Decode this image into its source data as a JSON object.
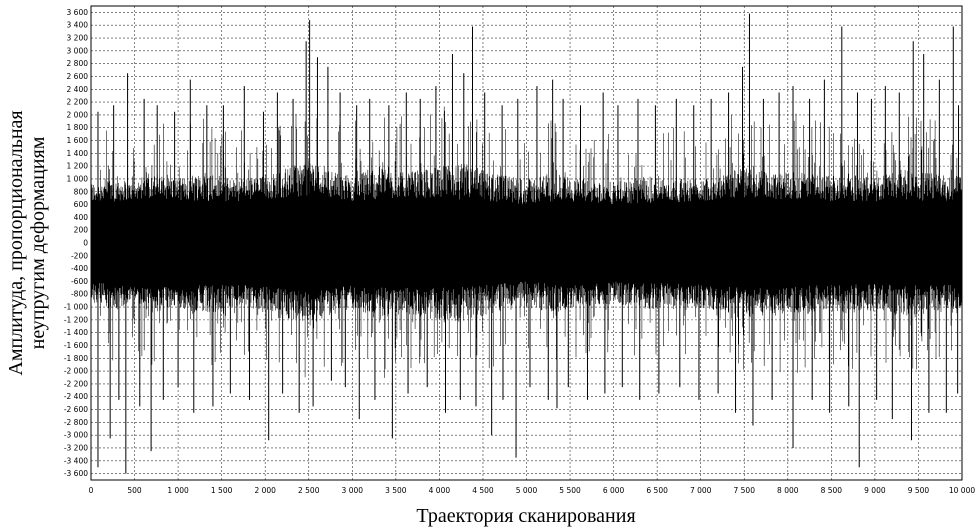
{
  "chart_data": {
    "type": "line",
    "xlabel": "Траектория сканирования",
    "ylabel_lines": [
      "Амплитуда, пропорциональная",
      "неупругим деформациям"
    ],
    "xlim": [
      0,
      10000
    ],
    "ylim": [
      -3700,
      3700
    ],
    "x_ticks": [
      0,
      500,
      1000,
      1500,
      2000,
      2500,
      3000,
      3500,
      4000,
      4500,
      5000,
      5500,
      6000,
      6500,
      7000,
      7500,
      8000,
      8500,
      9000,
      9500,
      10000
    ],
    "x_tick_labels": [
      "0",
      "500",
      "1 000",
      "1 500",
      "2 000",
      "2 500",
      "3 000",
      "3 500",
      "4 000",
      "4 500",
      "5 000",
      "5 500",
      "6 000",
      "6 500",
      "7 000",
      "7 500",
      "8 000",
      "8 500",
      "9 000",
      "9 500",
      "10 000"
    ],
    "y_ticks": [
      3600,
      3400,
      3200,
      3000,
      2800,
      2600,
      2400,
      2200,
      2000,
      1800,
      1600,
      1400,
      1200,
      1000,
      800,
      600,
      400,
      200,
      0,
      -200,
      -400,
      -600,
      -800,
      -1000,
      -1200,
      -1400,
      -1600,
      -1800,
      -2000,
      -2200,
      -2400,
      -2600,
      -2800,
      -3000,
      -3200,
      -3400,
      -3600
    ],
    "y_tick_labels": [
      "3 600",
      "3 400",
      "3 200",
      "3 000",
      "2 800",
      "2 600",
      "2 400",
      "2 200",
      "2 000",
      "1 800",
      "1 600",
      "1 400",
      "1 200",
      "1 000",
      "800",
      "600",
      "400",
      "200",
      "0",
      "-200",
      "-400",
      "-600",
      "-800",
      "-1 000",
      "-1 200",
      "-1 400",
      "-1 600",
      "-1 800",
      "-2 000",
      "-2 200",
      "-2 400",
      "-2 600",
      "-2 800",
      "-3 000",
      "-3 200",
      "-3 400",
      "-3 600"
    ],
    "grid": true,
    "series": [
      {
        "color": "#000000",
        "spikes_up": [
          [
            80,
            2050
          ],
          [
            260,
            2150
          ],
          [
            420,
            2650
          ],
          [
            610,
            2250
          ],
          [
            760,
            2150
          ],
          [
            960,
            2050
          ],
          [
            1140,
            2550
          ],
          [
            1330,
            2150
          ],
          [
            1520,
            2150
          ],
          [
            1760,
            2450
          ],
          [
            1980,
            2050
          ],
          [
            2140,
            2350
          ],
          [
            2320,
            2250
          ],
          [
            2470,
            3150
          ],
          [
            2510,
            3480
          ],
          [
            2600,
            2900
          ],
          [
            2720,
            2750
          ],
          [
            2860,
            2350
          ],
          [
            3050,
            2150
          ],
          [
            3200,
            2250
          ],
          [
            3420,
            2150
          ],
          [
            3620,
            2350
          ],
          [
            3780,
            2250
          ],
          [
            3960,
            2450
          ],
          [
            4150,
            2950
          ],
          [
            4280,
            2650
          ],
          [
            4380,
            3380
          ],
          [
            4520,
            2350
          ],
          [
            4720,
            2150
          ],
          [
            4900,
            2250
          ],
          [
            5120,
            2450
          ],
          [
            5300,
            2550
          ],
          [
            5420,
            2250
          ],
          [
            5620,
            2150
          ],
          [
            5880,
            2350
          ],
          [
            6050,
            2150
          ],
          [
            6280,
            2250
          ],
          [
            6480,
            2150
          ],
          [
            6720,
            2250
          ],
          [
            6920,
            2150
          ],
          [
            7120,
            2250
          ],
          [
            7320,
            2350
          ],
          [
            7480,
            2750
          ],
          [
            7560,
            3580
          ],
          [
            7720,
            2250
          ],
          [
            7900,
            2350
          ],
          [
            8060,
            2450
          ],
          [
            8250,
            2250
          ],
          [
            8420,
            2550
          ],
          [
            8620,
            3380
          ],
          [
            8800,
            2350
          ],
          [
            8960,
            2250
          ],
          [
            9120,
            2450
          ],
          [
            9280,
            2350
          ],
          [
            9440,
            3150
          ],
          [
            9560,
            2950
          ],
          [
            9740,
            2550
          ],
          [
            9900,
            3380
          ],
          [
            9960,
            2150
          ]
        ],
        "spikes_down": [
          [
            80,
            -3500
          ],
          [
            220,
            -3050
          ],
          [
            320,
            -2450
          ],
          [
            400,
            -3600
          ],
          [
            560,
            -2550
          ],
          [
            690,
            -3250
          ],
          [
            830,
            -2450
          ],
          [
            1000,
            -2250
          ],
          [
            1180,
            -2650
          ],
          [
            1400,
            -2550
          ],
          [
            1600,
            -2350
          ],
          [
            1820,
            -2450
          ],
          [
            2040,
            -3080
          ],
          [
            2200,
            -2350
          ],
          [
            2390,
            -2650
          ],
          [
            2550,
            -2550
          ],
          [
            2760,
            -2150
          ],
          [
            2920,
            -2250
          ],
          [
            3080,
            -2750
          ],
          [
            3260,
            -2450
          ],
          [
            3460,
            -3050
          ],
          [
            3640,
            -2350
          ],
          [
            3860,
            -2250
          ],
          [
            4070,
            -2650
          ],
          [
            4240,
            -2450
          ],
          [
            4420,
            -2550
          ],
          [
            4600,
            -3000
          ],
          [
            4730,
            -2450
          ],
          [
            4880,
            -3350
          ],
          [
            5040,
            -2250
          ],
          [
            5250,
            -2450
          ],
          [
            5350,
            -2580
          ],
          [
            5480,
            -2250
          ],
          [
            5700,
            -2450
          ],
          [
            5900,
            -2350
          ],
          [
            6100,
            -2250
          ],
          [
            6300,
            -2450
          ],
          [
            6520,
            -2350
          ],
          [
            6760,
            -2250
          ],
          [
            6980,
            -2450
          ],
          [
            7200,
            -2350
          ],
          [
            7400,
            -2650
          ],
          [
            7600,
            -2850
          ],
          [
            7820,
            -2450
          ],
          [
            8060,
            -3200
          ],
          [
            8280,
            -2450
          ],
          [
            8480,
            -2650
          ],
          [
            8700,
            -2550
          ],
          [
            8820,
            -3500
          ],
          [
            9020,
            -2450
          ],
          [
            9200,
            -2750
          ],
          [
            9420,
            -3080
          ],
          [
            9620,
            -2650
          ],
          [
            9820,
            -2650
          ],
          [
            9950,
            -2350
          ]
        ],
        "envelope_points": [
          [
            0,
            950
          ],
          [
            300,
            1050
          ],
          [
            500,
            900
          ],
          [
            700,
            1100
          ],
          [
            1000,
            1000
          ],
          [
            1300,
            1150
          ],
          [
            1600,
            1000
          ],
          [
            2000,
            1050
          ],
          [
            2300,
            1200
          ],
          [
            2500,
            1300
          ],
          [
            2700,
            1150
          ],
          [
            3000,
            1050
          ],
          [
            3300,
            1200
          ],
          [
            3600,
            1100
          ],
          [
            4000,
            1200
          ],
          [
            4300,
            1250
          ],
          [
            4600,
            1100
          ],
          [
            5000,
            1000
          ],
          [
            5300,
            1100
          ],
          [
            5600,
            1000
          ],
          [
            6000,
            950
          ],
          [
            6400,
            1050
          ],
          [
            6800,
            1000
          ],
          [
            7200,
            1050
          ],
          [
            7500,
            1200
          ],
          [
            7800,
            1100
          ],
          [
            8100,
            1150
          ],
          [
            8400,
            1050
          ],
          [
            8700,
            1100
          ],
          [
            9000,
            1050
          ],
          [
            9300,
            1150
          ],
          [
            9600,
            1100
          ],
          [
            10000,
            1050
          ]
        ],
        "core_points": [
          [
            0,
            600
          ],
          [
            300,
            650
          ],
          [
            700,
            700
          ],
          [
            1200,
            650
          ],
          [
            1700,
            650
          ],
          [
            2200,
            700
          ],
          [
            2600,
            750
          ],
          [
            3000,
            650
          ],
          [
            3500,
            700
          ],
          [
            4000,
            700
          ],
          [
            4500,
            650
          ],
          [
            5000,
            600
          ],
          [
            5500,
            650
          ],
          [
            6000,
            600
          ],
          [
            6500,
            620
          ],
          [
            7000,
            650
          ],
          [
            7500,
            700
          ],
          [
            8000,
            680
          ],
          [
            8500,
            650
          ],
          [
            9000,
            640
          ],
          [
            9500,
            660
          ],
          [
            10000,
            650
          ]
        ]
      }
    ]
  }
}
